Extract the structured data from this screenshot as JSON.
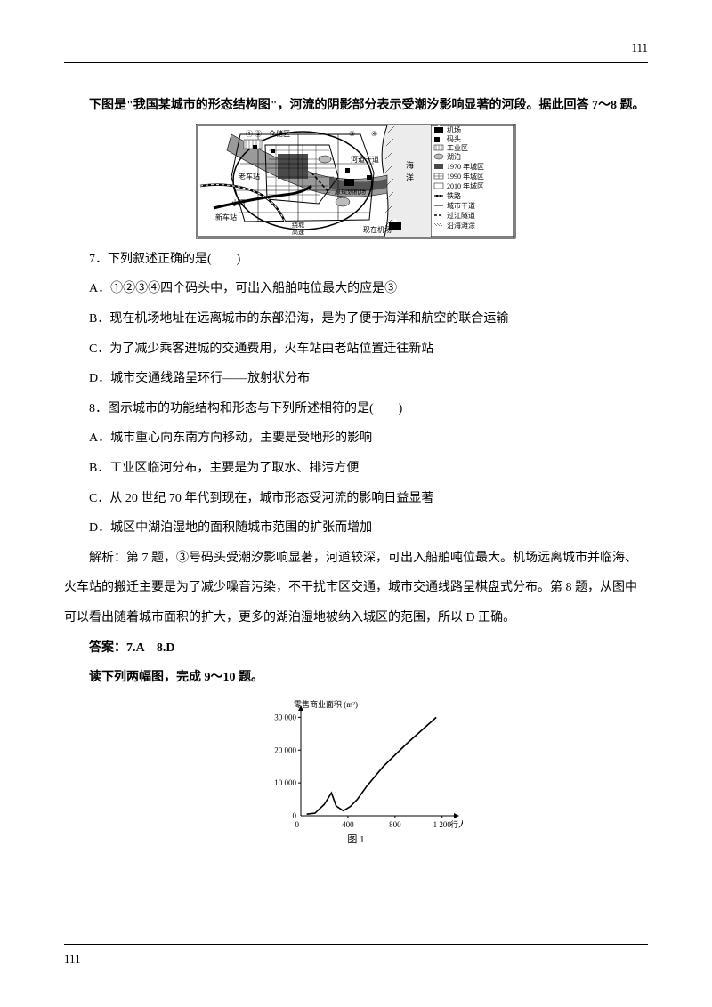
{
  "page_number_top": "111",
  "page_number_bottom": "111",
  "intro": "下图是\"我国某城市的形态结构图\"，河流的阴影部分表示受潮汐影响显著的河段。据此回答 7～8 题。",
  "map": {
    "labels": {
      "cangchu": "① ②　仓储区",
      "laochezhan": "老车站",
      "xinchezhan": "新车站",
      "xiaohe": "小河",
      "raochenggaosu": "绕城高速",
      "fangganhedao": "河道干道",
      "yuanjichang": "原规划机场",
      "xianzaijichang": "现在机场",
      "haiyang": "海洋",
      "num3": "③",
      "num4": "④"
    },
    "legend": [
      {
        "symbol": "airport",
        "text": "机场"
      },
      {
        "symbol": "dock",
        "text": "码头"
      },
      {
        "symbol": "industrial",
        "text": "工业区"
      },
      {
        "symbol": "lake",
        "text": "湖泊"
      },
      {
        "symbol": "area1970",
        "text": "1970 年城区"
      },
      {
        "symbol": "area1990",
        "text": "1990 年城区"
      },
      {
        "symbol": "area2010",
        "text": "2010 年城区"
      },
      {
        "symbol": "rail",
        "text": "铁路"
      },
      {
        "symbol": "road",
        "text": "城市干道"
      },
      {
        "symbol": "tunnel",
        "text": "过江隧道"
      },
      {
        "symbol": "beach",
        "text": "沿海滩涂"
      }
    ]
  },
  "q7": {
    "stem": "7．下列叙述正确的是(　　)",
    "A": "A．①②③④四个码头中，可出入船舶吨位最大的应是③",
    "B": "B．现在机场地址在远离城市的东部沿海，是为了便于海洋和航空的联合运输",
    "C": "C．为了减少乘客进城的交通费用，火车站由老站位置迁往新站",
    "D": "D．城市交通线路呈环行——放射状分布"
  },
  "q8": {
    "stem": "8．图示城市的功能结构和形态与下列所述相符的是(　　)",
    "A": "A．城市重心向东南方向移动，主要是受地形的影响",
    "B": "B．工业区临河分布，主要是为了取水、排污方便",
    "C": "C．从 20 世纪 70 年代到现在，城市形态受河流的影响日益显著",
    "D": "D．城区中湖泊湿地的面积随城市范围的扩张而增加"
  },
  "explain": "解析：第 7 题，③号码头受潮汐影响显著，河道较深，可出入船舶吨位最大。机场远离城市并临海、火车站的搬迁主要是为了减少噪音污染，不干扰市区交通，城市交通线路呈棋盘式分布。第 8 题，从图中可以看出随着城市面积的扩大，更多的湖泊湿地被纳入城区的范围，所以 D 正确。",
  "answer": "答案：7.A　8.D",
  "intro2": "读下列两幅图，完成 9～10 题。",
  "chart": {
    "type": "line",
    "title": "图 1",
    "y_label": "零售商业面积 (m²)",
    "x_label": "行人数/时",
    "x_ticks": [
      0,
      400,
      800,
      1200
    ],
    "y_ticks": [
      0,
      10000,
      20000,
      30000
    ],
    "y_tick_labels": [
      "0",
      "10 000",
      "20 000",
      "30 000"
    ],
    "xlim": [
      0,
      1300
    ],
    "ylim": [
      0,
      32000
    ],
    "points": [
      [
        50,
        500
      ],
      [
        120,
        800
      ],
      [
        200,
        3500
      ],
      [
        260,
        7000
      ],
      [
        300,
        3000
      ],
      [
        360,
        1500
      ],
      [
        420,
        2800
      ],
      [
        480,
        5000
      ],
      [
        560,
        9000
      ],
      [
        700,
        15000
      ],
      [
        900,
        22000
      ],
      [
        1150,
        30000
      ]
    ],
    "line_color": "#000000",
    "axis_color": "#000000",
    "background": "#ffffff",
    "font_size_axis": 9,
    "title_fontsize": 11
  }
}
